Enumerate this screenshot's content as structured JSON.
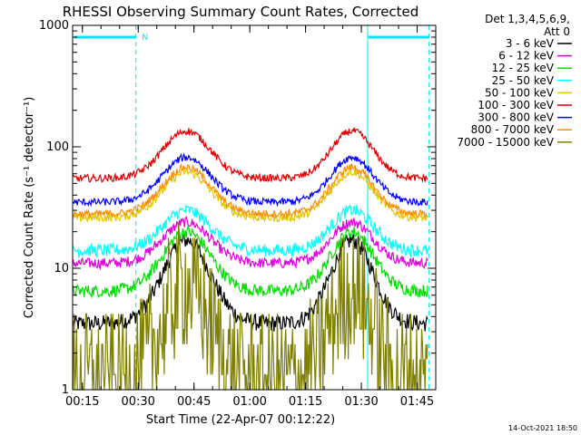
{
  "chart_data": {
    "type": "line",
    "title": "RHESSI Observing Summary Count Rates, Corrected",
    "xlabel": "Start Time (22-Apr-07 00:12:22)",
    "ylabel": "Corrected Count Rate (s⁻¹ detector⁻¹)",
    "y_scale": "log",
    "xlim": [
      12.37,
      110
    ],
    "ylim": [
      1,
      1000
    ],
    "x_ticks": [
      {
        "x": 15,
        "label": "00:15"
      },
      {
        "x": 30,
        "label": "00:30"
      },
      {
        "x": 45,
        "label": "00:45"
      },
      {
        "x": 60,
        "label": "01:00"
      },
      {
        "x": 75,
        "label": "01:15"
      },
      {
        "x": 90,
        "label": "01:30"
      },
      {
        "x": 105,
        "label": "01:45"
      }
    ],
    "y_ticks": [
      {
        "y": 1,
        "label": "1"
      },
      {
        "y": 10,
        "label": "10"
      },
      {
        "y": 100,
        "label": "100"
      },
      {
        "y": 1000,
        "label": "1000"
      }
    ],
    "legend_header": [
      "Det 1,3,4,5,6,9,",
      "Att 0"
    ],
    "legend_position": "top-right",
    "night_bars": [
      [
        12.37,
        29.5
      ],
      [
        91.4,
        108.2
      ]
    ],
    "night_label": {
      "x": 31,
      "text": "N"
    },
    "dashed_lines": [
      29.4,
      108.2
    ],
    "solid_lines": [
      12.37,
      91.7
    ],
    "series": [
      {
        "name": "3 - 6 keV",
        "color": "#000000",
        "base": 3.5,
        "peak": 17,
        "noise": 0.08,
        "step": 0
      },
      {
        "name": "6 - 12 keV",
        "color": "#e000e0",
        "base": 11,
        "peak": 24,
        "noise": 0.05,
        "step": 0
      },
      {
        "name": "12 - 25 keV",
        "color": "#00e000",
        "base": 6.5,
        "peak": 20,
        "noise": 0.06,
        "step": 0
      },
      {
        "name": "25 - 50 keV",
        "color": "#00ffff",
        "base": 14,
        "peak": 30,
        "noise": 0.06,
        "step": 0
      },
      {
        "name": "50 - 100 keV",
        "color": "#e0c800",
        "base": 26,
        "peak": 62,
        "noise": 0.04,
        "step": 0
      },
      {
        "name": "100 - 300 keV",
        "color": "#e00000",
        "base": 55,
        "peak": 135,
        "noise": 0.035,
        "step": 0
      },
      {
        "name": "300 - 800 keV",
        "color": "#0000ff",
        "base": 35,
        "peak": 82,
        "noise": 0.035,
        "step": 0
      },
      {
        "name": "800 - 7000 keV",
        "color": "#ff8c00",
        "base": 28,
        "peak": 68,
        "noise": 0.035,
        "step": 0
      },
      {
        "name": "7000 - 15000 keV",
        "color": "#808000",
        "base": 1.2,
        "peak": 7,
        "noise": 0.18,
        "step": 1
      }
    ],
    "orbit_peaks": [
      {
        "center": 43,
        "width": 9
      },
      {
        "center": 87.5,
        "width": 8
      }
    ],
    "timestamp": "14-Oct-2021 18:50"
  }
}
